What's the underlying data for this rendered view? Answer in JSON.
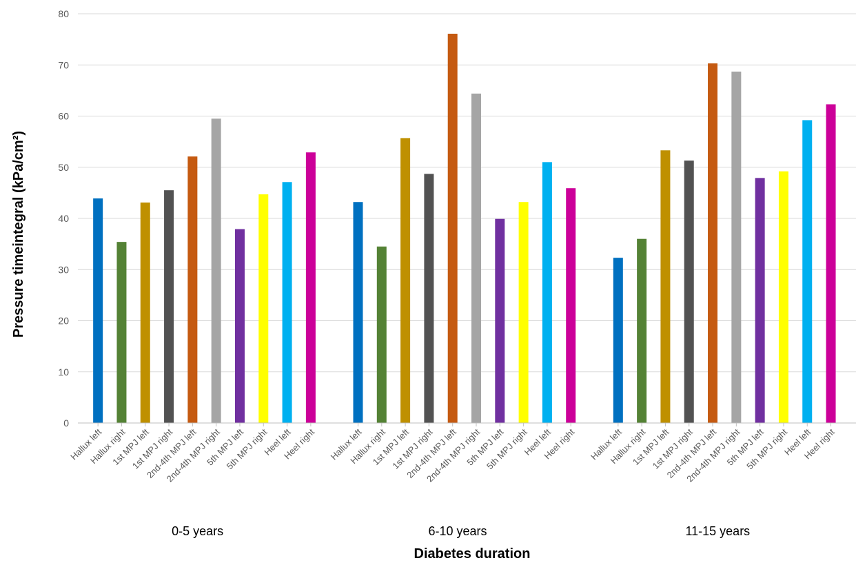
{
  "chart_data": {
    "type": "bar",
    "title": "",
    "xlabel": "Diabetes duration",
    "ylabel": "Pressure timeintegral (kPa/cm²)",
    "ylim": [
      0,
      80
    ],
    "yticks": [
      0,
      10,
      20,
      30,
      40,
      50,
      60,
      70,
      80
    ],
    "grid": true,
    "legend": "none",
    "groups": [
      "0-5 years",
      "6-10 years",
      "11-15 years"
    ],
    "categories": [
      "Hallux left",
      "Hallux right",
      "1st MPJ left",
      "1st MPJ right",
      "2nd-4th MPJ left",
      "2nd-4th MPJ right",
      "5th MPJ left",
      "5th MPJ right",
      "Heel left",
      "Heel right"
    ],
    "colors": [
      "#0070C0",
      "#548235",
      "#BF9000",
      "#525252",
      "#C55A11",
      "#A5A5A5",
      "#7030A0",
      "#FFFF00",
      "#00B0F0",
      "#CC0099"
    ],
    "series": [
      {
        "group": "0-5 years",
        "values": [
          43.9,
          35.4,
          43.1,
          45.5,
          52.1,
          59.5,
          37.9,
          44.7,
          47.1,
          52.9
        ]
      },
      {
        "group": "6-10 years",
        "values": [
          43.2,
          34.5,
          55.7,
          48.7,
          76.1,
          64.4,
          39.9,
          43.2,
          51.0,
          45.9
        ]
      },
      {
        "group": "11-15 years",
        "values": [
          32.3,
          36.0,
          53.3,
          51.3,
          70.3,
          68.7,
          47.9,
          49.2,
          59.2,
          62.3
        ]
      }
    ]
  }
}
